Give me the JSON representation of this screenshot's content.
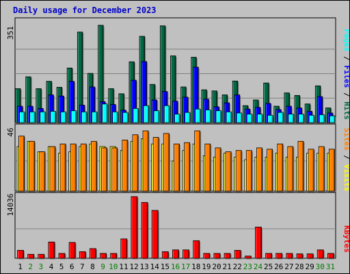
{
  "title": "Daily usage for December 2023",
  "colors": {
    "hits": "#006842",
    "files": "#0000ff",
    "pages": "#00ffff",
    "visits": "#ffff00",
    "sites": "#ff8000",
    "kbytes": "#ff0000",
    "title": "#0000c8",
    "weekend_day": "#007b00"
  },
  "chart_data": [
    {
      "type": "bar",
      "categories": [
        "1",
        "2",
        "3",
        "4",
        "5",
        "6",
        "7",
        "8",
        "9",
        "10",
        "11",
        "12",
        "13",
        "14",
        "15",
        "16",
        "17",
        "18",
        "19",
        "20",
        "21",
        "22",
        "23",
        "24",
        "25",
        "26",
        "27",
        "28",
        "29",
        "30",
        "31"
      ],
      "weekend_days": [
        "2",
        "3",
        "9",
        "10",
        "16",
        "17",
        "23",
        "24",
        "30",
        "31"
      ],
      "ymax_label": "351",
      "ylim": [
        0,
        351
      ],
      "series_labels": [
        "Hits",
        "Files",
        "Pages"
      ],
      "series": [
        {
          "name": "Hits",
          "values": [
            120,
            162,
            120,
            146,
            125,
            193,
            320,
            174,
            344,
            120,
            102,
            215,
            305,
            135,
            342,
            236,
            126,
            231,
            116,
            112,
            98,
            147,
            60,
            80,
            140,
            58,
            105,
            96,
            66,
            130,
            52
          ]
        },
        {
          "name": "Files",
          "values": [
            58,
            58,
            50,
            98,
            94,
            146,
            62,
            126,
            74,
            64,
            44,
            150,
            216,
            80,
            110,
            76,
            90,
            196,
            83,
            56,
            70,
            98,
            48,
            54,
            68,
            46,
            58,
            52,
            40,
            92,
            34
          ]
        },
        {
          "name": "Pages",
          "values": [
            38,
            38,
            38,
            40,
            38,
            42,
            38,
            38,
            66,
            38,
            36,
            50,
            60,
            42,
            60,
            30,
            36,
            48,
            45,
            42,
            38,
            34,
            30,
            30,
            26,
            36,
            30,
            30,
            26,
            28,
            24
          ]
        }
      ]
    },
    {
      "type": "bar",
      "categories": [
        "1",
        "2",
        "3",
        "4",
        "5",
        "6",
        "7",
        "8",
        "9",
        "10",
        "11",
        "12",
        "13",
        "14",
        "15",
        "16",
        "17",
        "18",
        "19",
        "20",
        "21",
        "22",
        "23",
        "24",
        "25",
        "26",
        "27",
        "28",
        "29",
        "30",
        "31"
      ],
      "ymax_label": "46",
      "ylim": [
        0,
        46
      ],
      "series_labels": [
        "Sites",
        "Visits"
      ],
      "series": [
        {
          "name": "Visits",
          "values": [
            34,
            38,
            30,
            34,
            29,
            30,
            34,
            36,
            34,
            34,
            31,
            38,
            40,
            36,
            36,
            23,
            31,
            36,
            27,
            26,
            29,
            26,
            24,
            26,
            26,
            29,
            26,
            26,
            29,
            29,
            29
          ]
        },
        {
          "name": "Sites",
          "values": [
            42,
            38,
            30,
            34,
            36,
            36,
            36,
            38,
            33,
            33,
            39,
            43,
            46,
            41,
            44,
            36,
            37,
            46,
            36,
            33,
            30,
            31,
            31,
            33,
            32,
            36,
            34,
            38,
            32,
            34,
            32
          ]
        }
      ]
    },
    {
      "type": "bar",
      "categories": [
        "1",
        "2",
        "3",
        "4",
        "5",
        "6",
        "7",
        "8",
        "9",
        "10",
        "11",
        "12",
        "13",
        "14",
        "15",
        "16",
        "17",
        "18",
        "19",
        "20",
        "21",
        "22",
        "23",
        "24",
        "25",
        "26",
        "27",
        "28",
        "29",
        "30",
        "31"
      ],
      "ymax_label": "14036",
      "ylim": [
        0,
        14036
      ],
      "series_labels": [
        "KBytes"
      ],
      "series": [
        {
          "name": "KBytes",
          "values": [
            1800,
            900,
            900,
            3700,
            1100,
            3600,
            1500,
            2200,
            1100,
            1100,
            4400,
            14036,
            12700,
            10900,
            1500,
            1900,
            1900,
            4000,
            1100,
            1100,
            1100,
            1800,
            500,
            7100,
            1100,
            1100,
            1100,
            1000,
            1000,
            1900,
            1100
          ]
        }
      ]
    }
  ]
}
